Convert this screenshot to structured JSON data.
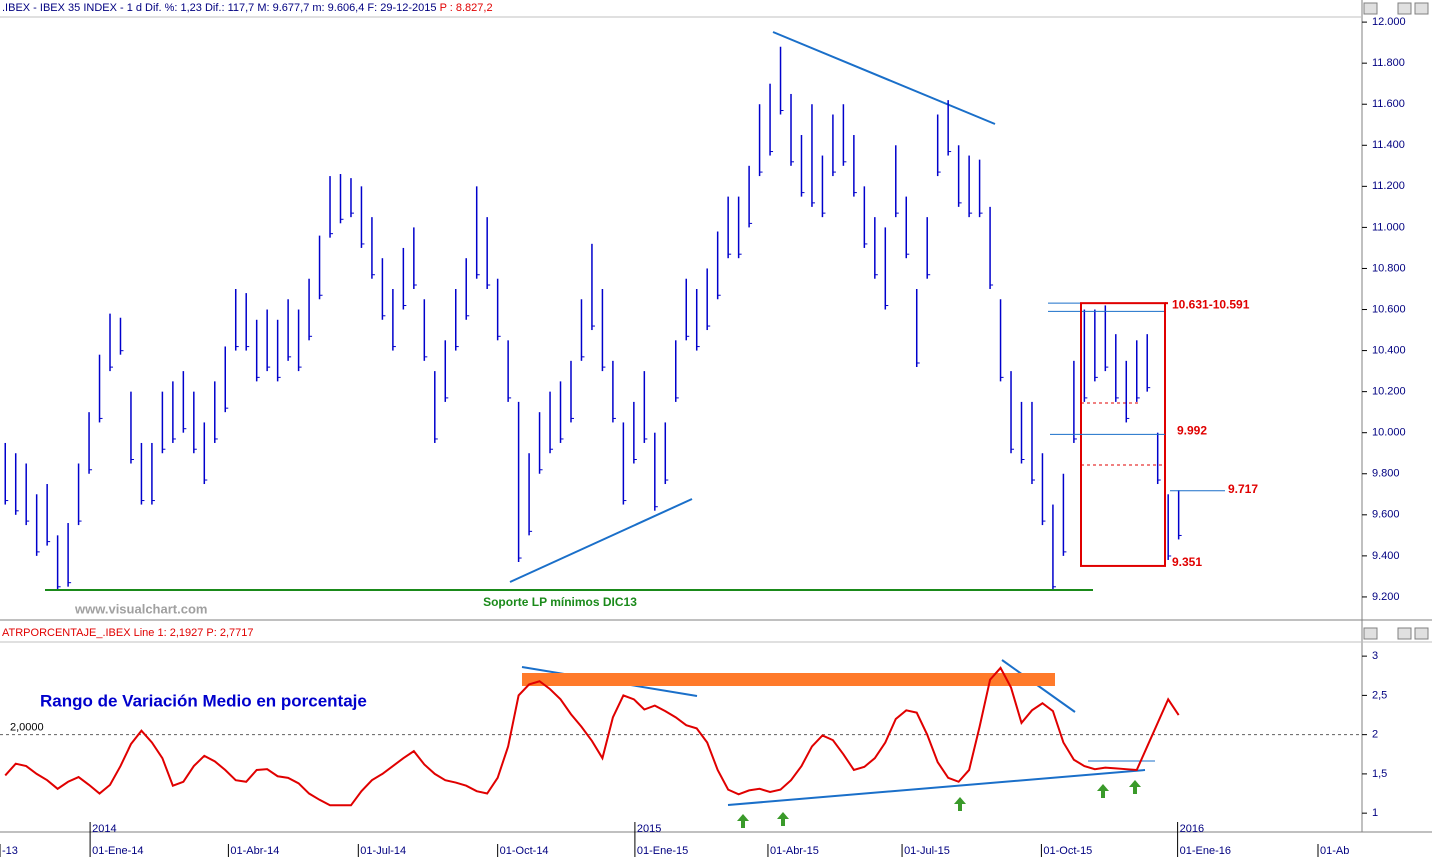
{
  "chart_data": [
    {
      "type": "range",
      "header": ".IBEX - IBEX 35 INDEX - 1 d  Dif. %: 1,23  Dif.: 117,7  M: 9.677,7  m: 9.606,4  F: 29-12-2015",
      "header_price": "P : 8.827,2",
      "watermark": "www.visualchart.com",
      "support": {
        "label": "Soporte LP mínimos DIC13",
        "value": 9234
      },
      "levels": [
        {
          "label": "10.631-10.591",
          "values": [
            10631,
            10591
          ]
        },
        {
          "label": "9.992",
          "value": 9992
        },
        {
          "label": "9.717",
          "value": 9717
        },
        {
          "label": "9.351",
          "value": 9351
        }
      ],
      "color": "#0000cc",
      "xlim": [
        -0.5,
        129.5
      ],
      "ylim": [
        9112,
        12020
      ],
      "yticks": [
        {
          "value": 9200,
          "label": "9.200"
        },
        {
          "value": 9400,
          "label": "9.400"
        },
        {
          "value": 9600,
          "label": "9.600"
        },
        {
          "value": 9800,
          "label": "9.800"
        },
        {
          "value": 10000,
          "label": "10.000"
        },
        {
          "value": 10200,
          "label": "10.200"
        },
        {
          "value": 10400,
          "label": "10.400"
        },
        {
          "value": 10600,
          "label": "10.600"
        },
        {
          "value": 10800,
          "label": "10.800"
        },
        {
          "value": 11000,
          "label": "11.000"
        },
        {
          "value": 11200,
          "label": "11.200"
        },
        {
          "value": 11400,
          "label": "11.400"
        },
        {
          "value": 11600,
          "label": "11.600"
        },
        {
          "value": 11800,
          "label": "11.800"
        },
        {
          "value": 12000,
          "label": "12.000"
        }
      ],
      "x": [
        0,
        1,
        2,
        3,
        4,
        5,
        6,
        7,
        8,
        9,
        10,
        11,
        12,
        13,
        14,
        15,
        16,
        17,
        18,
        19,
        20,
        21,
        22,
        23,
        24,
        25,
        26,
        27,
        28,
        29,
        30,
        31,
        32,
        33,
        34,
        35,
        36,
        37,
        38,
        39,
        40,
        41,
        42,
        43,
        44,
        45,
        46,
        47,
        48,
        49,
        50,
        51,
        52,
        53,
        54,
        55,
        56,
        57,
        58,
        59,
        60,
        61,
        62,
        63,
        64,
        65,
        66,
        67,
        68,
        69,
        70,
        71,
        72,
        73,
        74,
        75,
        76,
        77,
        78,
        79,
        80,
        81,
        82,
        83,
        84,
        85,
        86,
        87,
        88,
        89,
        90,
        91,
        92,
        93,
        94,
        95,
        96,
        97,
        98,
        99,
        100,
        101,
        102,
        103,
        104,
        105,
        106,
        107,
        108,
        109,
        110,
        111,
        112
      ],
      "high": [
        9950,
        9900,
        9850,
        9700,
        9750,
        9500,
        9560,
        9850,
        10100,
        10380,
        10580,
        10560,
        10200,
        9950,
        9950,
        10200,
        10250,
        10300,
        10200,
        10050,
        10250,
        10420,
        10700,
        10680,
        10550,
        10600,
        10550,
        10650,
        10600,
        10750,
        10960,
        11250,
        11260,
        11240,
        11200,
        11050,
        10850,
        10700,
        10900,
        11000,
        10650,
        10300,
        10450,
        10700,
        10850,
        11200,
        11050,
        10750,
        10450,
        10150,
        9900,
        10100,
        10200,
        10250,
        10350,
        10650,
        10920,
        10700,
        10350,
        10050,
        10150,
        10300,
        10000,
        10050,
        10450,
        10750,
        10700,
        10800,
        10980,
        11150,
        11150,
        11300,
        11600,
        11700,
        11880,
        11650,
        11450,
        11600,
        11350,
        11550,
        11600,
        11450,
        11200,
        11050,
        11000,
        11400,
        11150,
        10700,
        11050,
        11550,
        11620,
        11400,
        11350,
        11330,
        11100,
        10650,
        10300,
        10150,
        10150,
        9900,
        9650,
        9800,
        10350,
        10600,
        10600,
        10620,
        10480,
        10350,
        10450,
        10480,
        10000,
        9700,
        9720
      ],
      "low": [
        9650,
        9600,
        9550,
        9400,
        9450,
        9230,
        9250,
        9550,
        9800,
        10050,
        10300,
        10380,
        9850,
        9650,
        9650,
        9900,
        9950,
        10000,
        9900,
        9750,
        9950,
        10100,
        10400,
        10400,
        10250,
        10300,
        10250,
        10350,
        10300,
        10450,
        10650,
        10950,
        11020,
        11050,
        10900,
        10750,
        10550,
        10400,
        10600,
        10700,
        10350,
        9950,
        10150,
        10400,
        10550,
        10750,
        10700,
        10450,
        10150,
        9370,
        9500,
        9800,
        9900,
        9950,
        10050,
        10350,
        10500,
        10300,
        10050,
        9650,
        9850,
        9950,
        9620,
        9750,
        10150,
        10450,
        10400,
        10500,
        10650,
        10850,
        10850,
        11000,
        11250,
        11350,
        11550,
        11300,
        11150,
        11100,
        11050,
        11250,
        11300,
        11150,
        10900,
        10750,
        10600,
        11050,
        10850,
        10320,
        10750,
        11250,
        11350,
        11100,
        11050,
        11050,
        10700,
        10250,
        9900,
        9850,
        9750,
        9550,
        9230,
        9400,
        9950,
        10150,
        10250,
        10300,
        10150,
        10050,
        10150,
        10200,
        9750,
        9380,
        9480
      ]
    },
    {
      "type": "line",
      "header": "ATRPORCENTAJE_.IBEX Line 1: 2,1927",
      "header_price": "P: 2,7717",
      "title": "Rango de Variación Medio en porcentaje",
      "reference": {
        "value": 2,
        "label": "2,0000"
      },
      "color": "#e00000",
      "xlim": [
        -0.5,
        129.5
      ],
      "ylim": [
        0.76,
        3.18
      ],
      "yticks": [
        1,
        {
          "value": 1.5,
          "label": "1,5"
        },
        2,
        {
          "value": 2.5,
          "label": "2,5"
        },
        3
      ],
      "xticks": [
        {
          "value": -0.5,
          "label": "-13"
        },
        {
          "value": 8.1,
          "label": "01-Ene-14"
        },
        {
          "value": 21.3,
          "label": "01-Abr-14"
        },
        {
          "value": 33.7,
          "label": "01-Jul-14"
        },
        {
          "value": 47.0,
          "label": "01-Oct-14"
        },
        {
          "value": 60.1,
          "label": "01-Ene-15"
        },
        {
          "value": 72.8,
          "label": "01-Abr-15"
        },
        {
          "value": 85.6,
          "label": "01-Jul-15"
        },
        {
          "value": 98.9,
          "label": "01-Oct-15"
        },
        {
          "value": 111.9,
          "label": "01-Ene-16"
        },
        {
          "value": 125.3,
          "label": "01-Ab"
        }
      ],
      "year_labels": [
        {
          "value": 8.1,
          "label": "2014"
        },
        {
          "value": 60.1,
          "label": "2015"
        },
        {
          "value": 111.9,
          "label": "2016"
        }
      ],
      "x": [
        0,
        1,
        2,
        3,
        4,
        5,
        6,
        7,
        8,
        9,
        10,
        11,
        12,
        13,
        14,
        15,
        16,
        17,
        18,
        19,
        20,
        21,
        22,
        23,
        24,
        25,
        26,
        27,
        28,
        29,
        30,
        31,
        32,
        33,
        34,
        35,
        36,
        37,
        38,
        39,
        40,
        41,
        42,
        43,
        44,
        45,
        46,
        47,
        48,
        49,
        50,
        51,
        52,
        53,
        54,
        55,
        56,
        57,
        58,
        59,
        60,
        61,
        62,
        63,
        64,
        65,
        66,
        67,
        68,
        69,
        70,
        71,
        72,
        73,
        74,
        75,
        76,
        77,
        78,
        79,
        80,
        81,
        82,
        83,
        84,
        85,
        86,
        87,
        88,
        89,
        90,
        91,
        92,
        93,
        94,
        95,
        96,
        97,
        98,
        99,
        100,
        101,
        102,
        103,
        104,
        105,
        106,
        107,
        108,
        109,
        110,
        111,
        112
      ],
      "values": [
        1.48,
        1.63,
        1.6,
        1.5,
        1.42,
        1.31,
        1.4,
        1.46,
        1.36,
        1.25,
        1.36,
        1.6,
        1.88,
        2.05,
        1.9,
        1.7,
        1.35,
        1.4,
        1.6,
        1.73,
        1.66,
        1.55,
        1.42,
        1.4,
        1.55,
        1.56,
        1.47,
        1.45,
        1.38,
        1.25,
        1.17,
        1.1,
        1.1,
        1.1,
        1.28,
        1.42,
        1.5,
        1.6,
        1.7,
        1.79,
        1.62,
        1.5,
        1.42,
        1.39,
        1.35,
        1.28,
        1.25,
        1.45,
        1.85,
        2.5,
        2.64,
        2.68,
        2.58,
        2.45,
        2.26,
        2.1,
        1.92,
        1.7,
        2.22,
        2.5,
        2.45,
        2.32,
        2.37,
        2.3,
        2.22,
        2.12,
        2.08,
        1.9,
        1.55,
        1.3,
        1.24,
        1.29,
        1.31,
        1.27,
        1.3,
        1.42,
        1.6,
        1.85,
        1.99,
        1.93,
        1.75,
        1.55,
        1.59,
        1.7,
        1.9,
        2.2,
        2.31,
        2.28,
        2.0,
        1.65,
        1.45,
        1.4,
        1.55,
        2.1,
        2.7,
        2.85,
        2.6,
        2.15,
        2.31,
        2.4,
        2.3,
        1.9,
        1.68,
        1.6,
        1.56,
        1.58,
        1.57,
        1.56,
        1.55,
        1.85,
        2.15,
        2.45,
        2.25
      ]
    }
  ]
}
